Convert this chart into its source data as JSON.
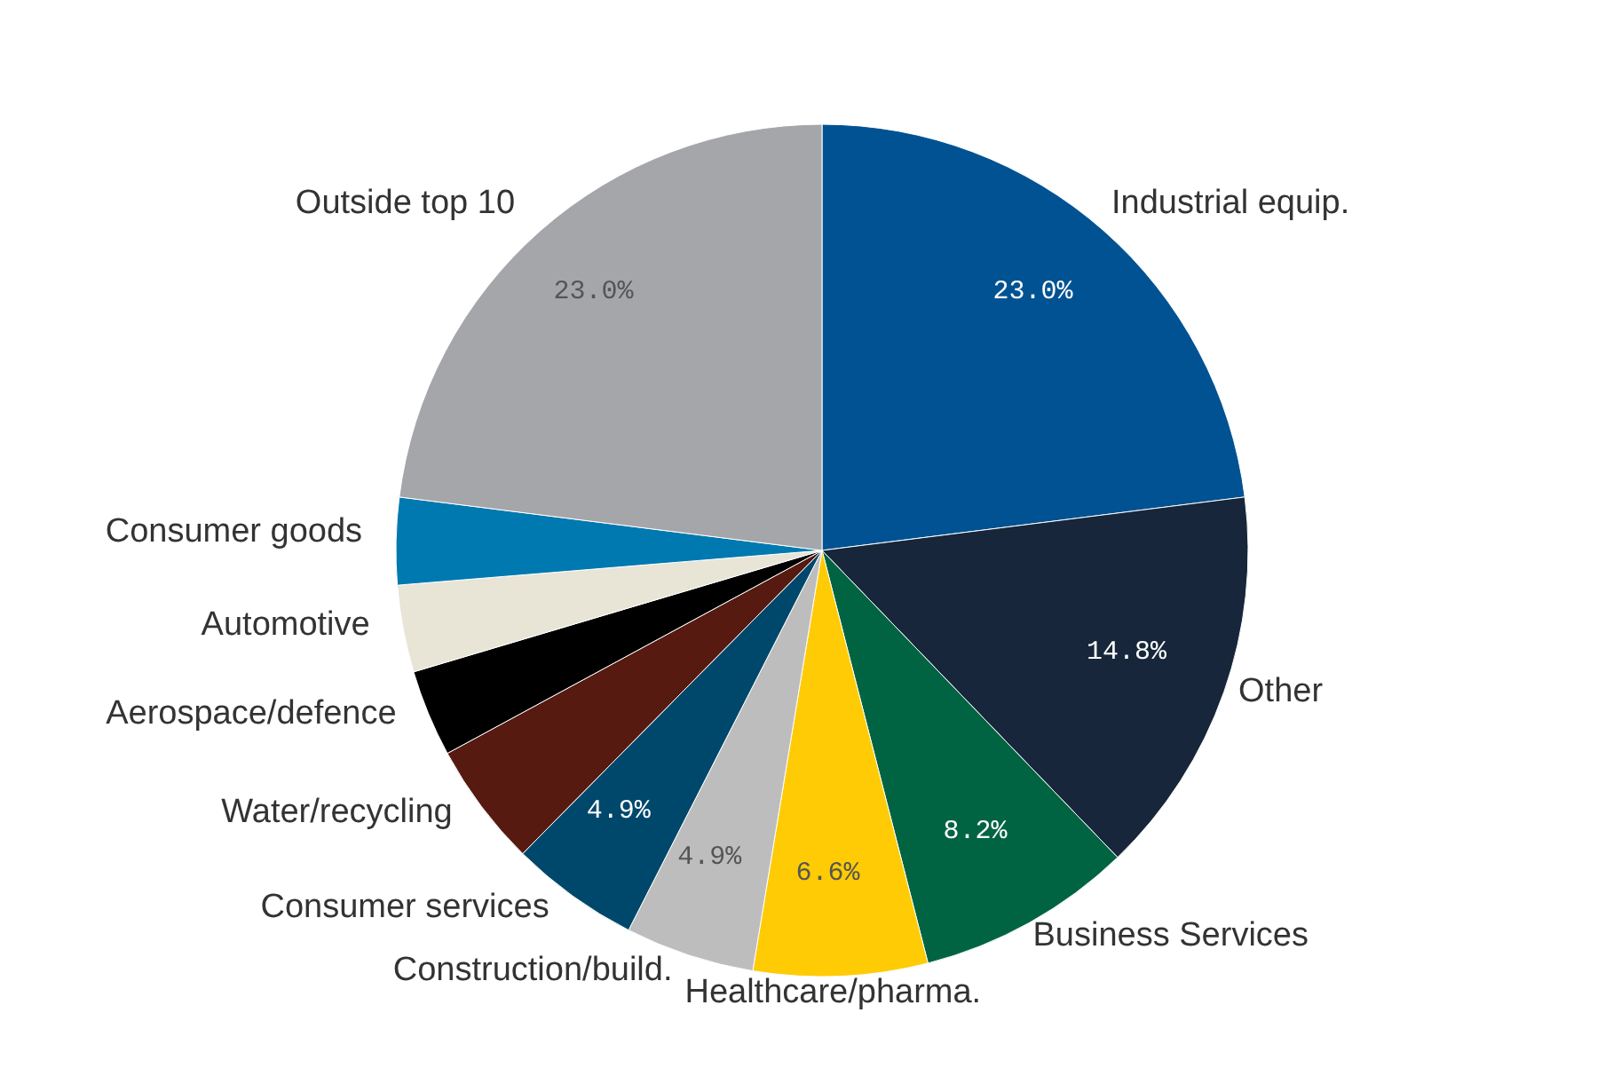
{
  "chart_data": {
    "type": "pie",
    "categories": [
      "Industrial equip.",
      "Other",
      "Business Services",
      "Healthcare/pharma.",
      "Construction/build.",
      "Consumer services",
      "Water/recycling",
      "Aerospace/defence",
      "Automotive",
      "Consumer goods",
      "Outside top 10"
    ],
    "values": [
      23.0,
      14.8,
      8.2,
      6.6,
      4.9,
      4.9,
      4.7,
      3.3,
      3.3,
      3.3,
      23.0
    ],
    "value_labels": [
      "23.0%",
      "14.8%",
      "8.2%",
      "6.6%",
      "4.9%",
      "4.9%",
      null,
      null,
      null,
      null,
      "23.0%"
    ],
    "colors": [
      "#005293",
      "#17263a",
      "#006443",
      "#ffcb05",
      "#bdbdbd",
      "#00486b",
      "#561a10",
      "#000000",
      "#e8e4d6",
      "#0079b0",
      "#a5a6aa"
    ],
    "legend": false
  }
}
